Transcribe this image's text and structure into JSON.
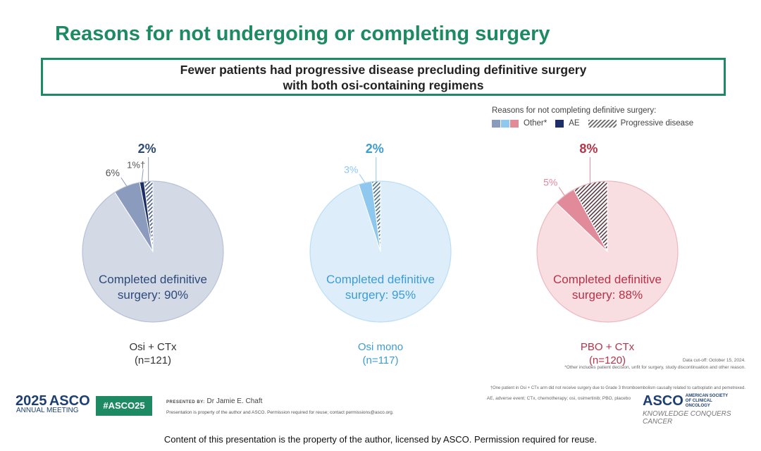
{
  "title": "Reasons for not undergoing or completing surgery",
  "callout": {
    "line1": "Fewer patients had progressive disease precluding definitive surgery",
    "line2": "with both osi-containing regimens"
  },
  "legend": {
    "title": "Reasons for not completing definitive surgery:",
    "other_label": "Other*",
    "ae_label": "AE",
    "pd_label": "Progressive disease"
  },
  "colors": {
    "brand_green": "#1e8a63",
    "group1_main": "#d4d9e6",
    "group1_other": "#8a9bbd",
    "group1_text": "#2d4a7a",
    "group2_main": "#ddeefa",
    "group2_other": "#8ec8ee",
    "group2_text": "#3d9cd6",
    "group3_main": "#f8dde1",
    "group3_other": "#e08a9a",
    "group3_text": "#b83248",
    "ae": "#1d2f66",
    "stroke": "#ffffff"
  },
  "chart_data": [
    {
      "type": "pie",
      "group": "Osi + CTx",
      "n_label": "(n=121)",
      "center_label_1": "Completed definitive",
      "center_label_2": "surgery: 90%",
      "slices": [
        {
          "name": "Completed definitive surgery",
          "value": 90
        },
        {
          "name": "Other",
          "value": 6,
          "label": "6%"
        },
        {
          "name": "AE",
          "value": 1,
          "label": "1%†"
        },
        {
          "name": "Progressive disease",
          "value": 2,
          "label": "2%"
        }
      ]
    },
    {
      "type": "pie",
      "group": "Osi mono",
      "n_label": "(n=117)",
      "center_label_1": "Completed definitive",
      "center_label_2": "surgery: 95%",
      "slices": [
        {
          "name": "Completed definitive surgery",
          "value": 95
        },
        {
          "name": "Other",
          "value": 3,
          "label": "3%"
        },
        {
          "name": "Progressive disease",
          "value": 2,
          "label": "2%"
        }
      ]
    },
    {
      "type": "pie",
      "group": "PBO + CTx",
      "n_label": "(n=120)",
      "center_label_1": "Completed definitive",
      "center_label_2": "surgery: 88%",
      "slices": [
        {
          "name": "Completed definitive surgery",
          "value": 88
        },
        {
          "name": "Other",
          "value": 5,
          "label": "5%"
        },
        {
          "name": "Progressive disease",
          "value": 8,
          "label": "8%"
        }
      ]
    }
  ],
  "footer": {
    "asco_year": "2025",
    "asco_name": "ASCO",
    "asco_sub": "ANNUAL MEETING",
    "hashtag": "#ASCO25",
    "presented_by": "PRESENTED BY:",
    "presenter": "Dr Jamie E. Chaft",
    "property_note": "Presentation is property of the author and ASCO. Permission required for reuse; contact permissions@asco.org.",
    "data_cutoff": "Data cut-off: October 15, 2024.",
    "fn_other": "*Other includes patient decision, unfit for surgery, study discontinuation and other reason.",
    "fn_dagger": "†One patient in Osi + CTx arm did not receive surgery due to Grade 3 thromboembolism causally related to carboplatin and pemetrexed.",
    "abbrev": "AE, adverse event; CTx, chemotherapy; osi, osimertinib; PBO, placebo",
    "asco_logo2": "ASCO",
    "asco_society": "AMERICAN SOCIETY OF CLINICAL ONCOLOGY",
    "tagline": "KNOWLEDGE CONQUERS CANCER",
    "disclaimer": "Content of this presentation is the property of the author, licensed by ASCO. Permission required for reuse."
  }
}
